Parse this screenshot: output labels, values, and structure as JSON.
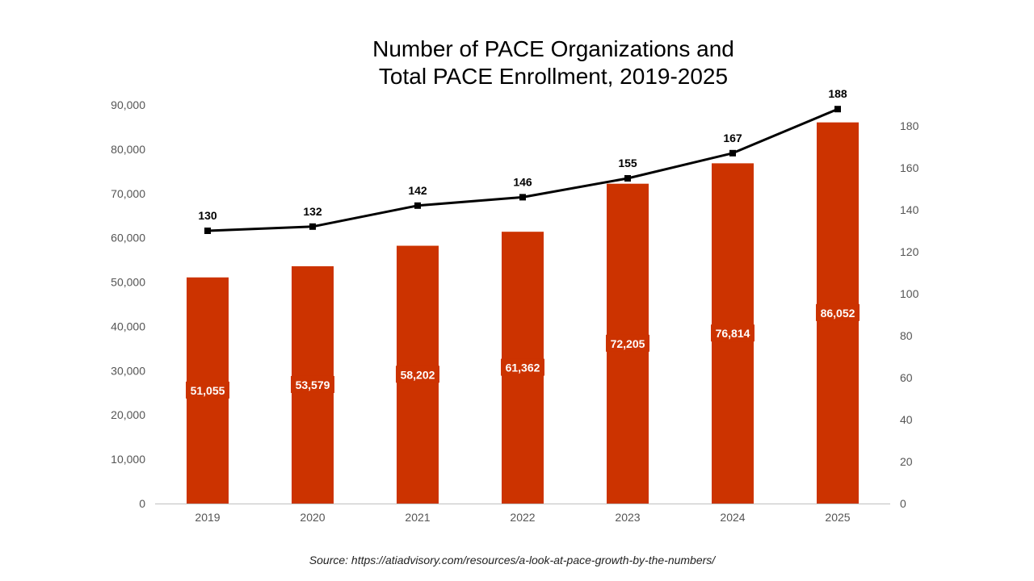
{
  "title_line1": "Number of PACE Organizations and",
  "title_line2": "Total PACE Enrollment, 2019-2025",
  "source": "Source: https://atiadvisory.com/resources/a-look-at-pace-growth-by-the-numbers/",
  "colors": {
    "bar": "#cc3300",
    "line": "#000000",
    "axis_text": "#555555",
    "baseline": "#bfbfbf"
  },
  "chart_data": {
    "type": "bar",
    "categories": [
      "2019",
      "2020",
      "2021",
      "2022",
      "2023",
      "2024",
      "2025"
    ],
    "series": [
      {
        "type": "bar",
        "axis": "left",
        "values": [
          51055,
          53579,
          58202,
          61362,
          72205,
          76814,
          86052
        ],
        "labels": [
          "51,055",
          "53,579",
          "58,202",
          "61,362",
          "72,205",
          "76,814",
          "86,052"
        ]
      },
      {
        "type": "line",
        "axis": "right",
        "values": [
          130,
          132,
          142,
          146,
          155,
          167,
          188
        ],
        "labels": [
          "130",
          "132",
          "142",
          "146",
          "155",
          "167",
          "188"
        ]
      }
    ],
    "y_left": {
      "range": [
        0,
        90000
      ],
      "ticks": [
        0,
        10000,
        20000,
        30000,
        40000,
        50000,
        60000,
        70000,
        80000,
        90000
      ],
      "tick_labels": [
        "0",
        "10,000",
        "20,000",
        "30,000",
        "40,000",
        "50,000",
        "60,000",
        "70,000",
        "80,000",
        "90,000"
      ]
    },
    "y_right": {
      "range": [
        0,
        190
      ],
      "ticks": [
        0,
        20,
        40,
        60,
        80,
        100,
        120,
        140,
        160,
        180
      ],
      "tick_labels": [
        "0",
        "20",
        "40",
        "60",
        "80",
        "100",
        "120",
        "140",
        "160",
        "180"
      ]
    },
    "grid": false,
    "legend": "none"
  }
}
